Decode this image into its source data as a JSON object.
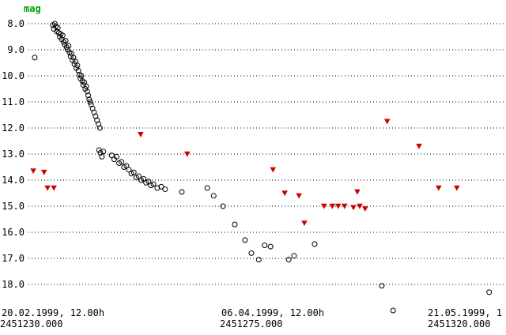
{
  "chart_data": {
    "type": "scatter",
    "title": "",
    "ylabel": "mag",
    "grid": "horizontal-dotted",
    "colors": {
      "ylabel": "#00a000",
      "observations": "#000000",
      "limits": "#cc0000",
      "background": "#ffffff"
    },
    "y_axis": {
      "min": 8.0,
      "max": 18.0,
      "inverted": true,
      "ticks": [
        "8.0",
        "9.0",
        "10.0",
        "11.0",
        "12.0",
        "13.0",
        "14.0",
        "15.0",
        "16.0",
        "17.0",
        "18.0"
      ]
    },
    "x_axis": {
      "unit": "Julian Date",
      "ticks": [
        {
          "date": "20.02.1999, 12.00h",
          "jd_label": "2451230.000",
          "jd": 2451230.0
        },
        {
          "date": "06.04.1999, 12.00h",
          "jd_label": "2451275.000",
          "jd": 2451275.0
        },
        {
          "date": "21.05.1999, 1",
          "jd_label": "2451320.000",
          "jd": 2451320.0,
          "clipped": true
        }
      ]
    },
    "series": [
      {
        "name": "observations",
        "marker": "open-circle",
        "color": "#000000",
        "points": [
          [
            2451235.8,
            9.3
          ],
          [
            2451239.5,
            8.05
          ],
          [
            2451239.7,
            8.2
          ],
          [
            2451239.9,
            8.0
          ],
          [
            2451240.1,
            8.1
          ],
          [
            2451240.3,
            8.3
          ],
          [
            2451240.5,
            8.15
          ],
          [
            2451240.7,
            8.35
          ],
          [
            2451240.9,
            8.5
          ],
          [
            2451241.1,
            8.4
          ],
          [
            2451241.3,
            8.6
          ],
          [
            2451241.5,
            8.45
          ],
          [
            2451241.7,
            8.7
          ],
          [
            2451241.9,
            8.8
          ],
          [
            2451242.1,
            8.65
          ],
          [
            2451242.3,
            8.9
          ],
          [
            2451242.5,
            9.0
          ],
          [
            2451242.7,
            8.85
          ],
          [
            2451242.9,
            9.1
          ],
          [
            2451243.1,
            9.25
          ],
          [
            2451243.3,
            9.15
          ],
          [
            2451243.5,
            9.4
          ],
          [
            2451243.7,
            9.3
          ],
          [
            2451243.9,
            9.55
          ],
          [
            2451244.1,
            9.45
          ],
          [
            2451244.3,
            9.7
          ],
          [
            2451244.5,
            9.6
          ],
          [
            2451244.7,
            9.8
          ],
          [
            2451244.9,
            9.95
          ],
          [
            2451245.1,
            10.1
          ],
          [
            2451245.3,
            10.0
          ],
          [
            2451245.5,
            10.2
          ],
          [
            2451245.7,
            10.35
          ],
          [
            2451245.9,
            10.25
          ],
          [
            2451246.1,
            10.5
          ],
          [
            2451246.3,
            10.4
          ],
          [
            2451246.5,
            10.6
          ],
          [
            2451246.7,
            10.75
          ],
          [
            2451246.9,
            10.9
          ],
          [
            2451247.1,
            11.0
          ],
          [
            2451247.3,
            11.1
          ],
          [
            2451247.6,
            11.25
          ],
          [
            2451247.9,
            11.4
          ],
          [
            2451248.2,
            11.55
          ],
          [
            2451248.5,
            11.7
          ],
          [
            2451248.8,
            11.85
          ],
          [
            2451249.1,
            12.0
          ],
          [
            2451248.9,
            12.85
          ],
          [
            2451249.2,
            12.95
          ],
          [
            2451249.5,
            13.1
          ],
          [
            2451249.8,
            12.9
          ],
          [
            2451251.5,
            13.05
          ],
          [
            2451252.0,
            13.2
          ],
          [
            2451252.5,
            13.1
          ],
          [
            2451253.0,
            13.35
          ],
          [
            2451253.5,
            13.3
          ],
          [
            2451254.0,
            13.5
          ],
          [
            2451254.5,
            13.45
          ],
          [
            2451255.0,
            13.6
          ],
          [
            2451255.5,
            13.75
          ],
          [
            2451256.0,
            13.7
          ],
          [
            2451256.5,
            13.9
          ],
          [
            2451257.0,
            13.85
          ],
          [
            2451257.5,
            14.0
          ],
          [
            2451258.0,
            13.95
          ],
          [
            2451258.5,
            14.1
          ],
          [
            2451259.0,
            14.05
          ],
          [
            2451259.5,
            14.2
          ],
          [
            2451260.0,
            14.15
          ],
          [
            2451260.8,
            14.3
          ],
          [
            2451261.6,
            14.25
          ],
          [
            2451262.4,
            14.35
          ],
          [
            2451265.8,
            14.45
          ],
          [
            2451271.0,
            14.3
          ],
          [
            2451272.3,
            14.6
          ],
          [
            2451274.2,
            15.0
          ],
          [
            2451276.6,
            15.7
          ],
          [
            2451278.7,
            16.3
          ],
          [
            2451280.0,
            16.8
          ],
          [
            2451281.5,
            17.05
          ],
          [
            2451282.7,
            16.5
          ],
          [
            2451283.9,
            16.55
          ],
          [
            2451287.6,
            17.05
          ],
          [
            2451288.7,
            16.9
          ],
          [
            2451292.9,
            16.45
          ],
          [
            2451306.6,
            18.05
          ],
          [
            2451308.9,
            19.0
          ],
          [
            2451328.5,
            18.3
          ]
        ]
      },
      {
        "name": "fainter-than limits",
        "marker": "filled-triangle-down",
        "color": "#cc0000",
        "points": [
          [
            2451235.5,
            13.65
          ],
          [
            2451237.7,
            13.7
          ],
          [
            2451238.4,
            14.3
          ],
          [
            2451239.7,
            14.3
          ],
          [
            2451257.4,
            12.25
          ],
          [
            2451266.9,
            13.0
          ],
          [
            2451284.4,
            13.6
          ],
          [
            2451286.8,
            14.5
          ],
          [
            2451289.7,
            14.6
          ],
          [
            2451290.8,
            15.65
          ],
          [
            2451294.8,
            15.0
          ],
          [
            2451296.5,
            15.0
          ],
          [
            2451297.7,
            15.0
          ],
          [
            2451299.0,
            15.0
          ],
          [
            2451300.8,
            15.05
          ],
          [
            2451301.6,
            14.45
          ],
          [
            2451302.1,
            15.0
          ],
          [
            2451303.2,
            15.1
          ],
          [
            2451307.7,
            11.75
          ],
          [
            2451314.2,
            12.7
          ],
          [
            2451318.2,
            14.3
          ],
          [
            2451321.9,
            14.3
          ]
        ]
      }
    ]
  }
}
